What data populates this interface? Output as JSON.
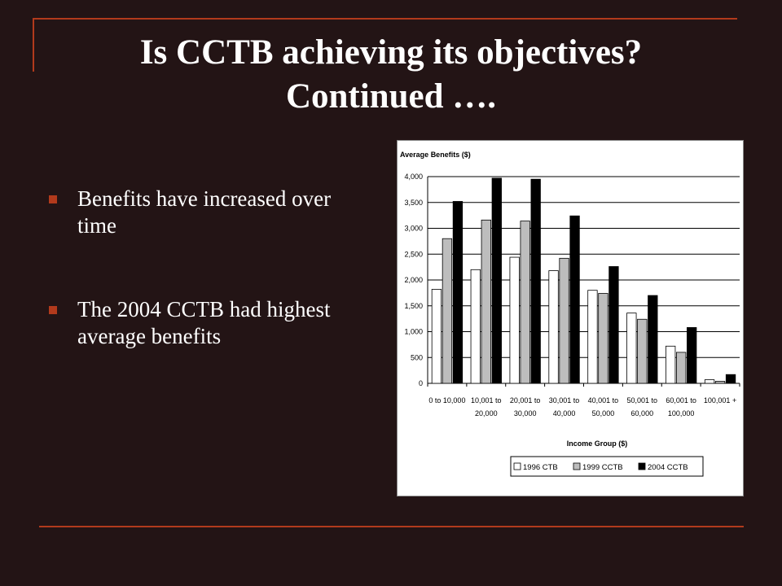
{
  "slide": {
    "title_line1": "Is CCTB achieving its objectives?",
    "title_line2": "Continued ….",
    "bullets": [
      "Benefits have increased over time",
      "The 2004 CCTB had highest average benefits"
    ]
  },
  "chart_data": {
    "type": "bar",
    "ylabel": "Average Benefits ($)",
    "xlabel": "Income Group ($)",
    "ylim": [
      0,
      4000
    ],
    "yticks": [
      "0",
      "500",
      "1,000",
      "1,500",
      "2,000",
      "2,500",
      "3,000",
      "3,500",
      "4,000"
    ],
    "ytick_values": [
      0,
      500,
      1000,
      1500,
      2000,
      2500,
      3000,
      3500,
      4000
    ],
    "grid": true,
    "legend_position": "bottom",
    "categories": [
      [
        "0 to 10,000"
      ],
      [
        "10,001 to",
        "20,000"
      ],
      [
        "20,001 to",
        "30,000"
      ],
      [
        "30,001 to",
        "40,000"
      ],
      [
        "40,001 to",
        "50,000"
      ],
      [
        "50,001 to",
        "60,000"
      ],
      [
        "60,001 to",
        "100,000"
      ],
      [
        "100,001 +"
      ]
    ],
    "series": [
      {
        "name": "1996 CTB",
        "color": "#ffffff",
        "values": [
          1820,
          2200,
          2440,
          2180,
          1800,
          1360,
          720,
          70
        ]
      },
      {
        "name": "1999 CCTB",
        "color": "#bdbdbd",
        "values": [
          2800,
          3160,
          3140,
          2420,
          1740,
          1240,
          600,
          40
        ]
      },
      {
        "name": "2004 CCTB",
        "color": "#000000",
        "values": [
          3520,
          3970,
          3950,
          3240,
          2260,
          1700,
          1080,
          170
        ]
      }
    ]
  }
}
